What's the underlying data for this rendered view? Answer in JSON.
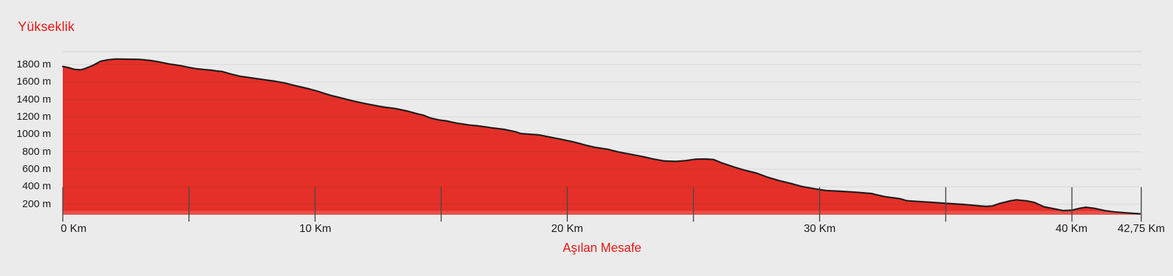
{
  "page": {
    "background": "#ebebeb"
  },
  "chart_data": {
    "type": "area",
    "title": "Yükseklik",
    "xlabel": "Aşılan Mesafe",
    "ylabel": "Yükseklik",
    "x_unit": "Km",
    "y_unit": "m",
    "xlim": [
      0,
      42.75
    ],
    "ylim": [
      0,
      1950
    ],
    "grid": true,
    "legend_position": "none",
    "fill_baseline_m": 79,
    "y_ticks": [
      {
        "value": 1800,
        "label": "1800 m"
      },
      {
        "value": 1600,
        "label": "1600 m"
      },
      {
        "value": 1400,
        "label": "1400 m"
      },
      {
        "value": 1200,
        "label": "1200 m"
      },
      {
        "value": 1000,
        "label": "1000 m"
      },
      {
        "value": 800,
        "label": "800 m"
      },
      {
        "value": 600,
        "label": "600 m"
      },
      {
        "value": 400,
        "label": "400 m"
      },
      {
        "value": 200,
        "label": "200 m"
      }
    ],
    "x_ticks": [
      {
        "value": 0,
        "label": "0 Km"
      },
      {
        "value": 5,
        "label": ""
      },
      {
        "value": 10,
        "label": "10 Km"
      },
      {
        "value": 15,
        "label": ""
      },
      {
        "value": 20,
        "label": "20 Km"
      },
      {
        "value": 25,
        "label": ""
      },
      {
        "value": 30,
        "label": "30 Km"
      },
      {
        "value": 35,
        "label": ""
      },
      {
        "value": 40,
        "label": "40 Km"
      },
      {
        "value": 42.75,
        "label": "42,75 Km"
      }
    ],
    "series": [
      {
        "name": "elevation-profile",
        "points": [
          [
            0,
            1778
          ],
          [
            0.2,
            1768
          ],
          [
            0.45,
            1746
          ],
          [
            0.7,
            1740
          ],
          [
            0.9,
            1756
          ],
          [
            1.2,
            1792
          ],
          [
            1.5,
            1838
          ],
          [
            1.8,
            1856
          ],
          [
            2.1,
            1864
          ],
          [
            2.5,
            1862
          ],
          [
            3.0,
            1860
          ],
          [
            3.2,
            1856
          ],
          [
            3.5,
            1846
          ],
          [
            3.8,
            1832
          ],
          [
            4.2,
            1808
          ],
          [
            4.7,
            1786
          ],
          [
            5.0,
            1768
          ],
          [
            5.3,
            1752
          ],
          [
            5.65,
            1742
          ],
          [
            5.9,
            1736
          ],
          [
            6.1,
            1727
          ],
          [
            6.3,
            1722
          ],
          [
            6.6,
            1697
          ],
          [
            7.0,
            1668
          ],
          [
            7.3,
            1655
          ],
          [
            7.9,
            1630
          ],
          [
            8.4,
            1610
          ],
          [
            8.8,
            1589
          ],
          [
            9.2,
            1560
          ],
          [
            9.75,
            1523
          ],
          [
            10.1,
            1495
          ],
          [
            10.45,
            1462
          ],
          [
            10.65,
            1445
          ],
          [
            11.0,
            1420
          ],
          [
            11.55,
            1380
          ],
          [
            12.0,
            1352
          ],
          [
            12.5,
            1325
          ],
          [
            12.8,
            1310
          ],
          [
            13.1,
            1300
          ],
          [
            13.35,
            1286
          ],
          [
            13.65,
            1268
          ],
          [
            14.0,
            1240
          ],
          [
            14.3,
            1220
          ],
          [
            14.55,
            1190
          ],
          [
            14.9,
            1166
          ],
          [
            15.2,
            1155
          ],
          [
            15.6,
            1130
          ],
          [
            16.1,
            1108
          ],
          [
            16.4,
            1100
          ],
          [
            16.75,
            1086
          ],
          [
            17.0,
            1075
          ],
          [
            17.5,
            1057
          ],
          [
            17.95,
            1030
          ],
          [
            18.15,
            1010
          ],
          [
            18.5,
            1002
          ],
          [
            18.85,
            996
          ],
          [
            19.3,
            970
          ],
          [
            19.75,
            944
          ],
          [
            20.2,
            917
          ],
          [
            20.5,
            895
          ],
          [
            20.7,
            878
          ],
          [
            21.1,
            851
          ],
          [
            21.6,
            830
          ],
          [
            22.0,
            800
          ],
          [
            22.5,
            772
          ],
          [
            23.0,
            745
          ],
          [
            23.4,
            719
          ],
          [
            23.85,
            695
          ],
          [
            24.3,
            690
          ],
          [
            24.7,
            700
          ],
          [
            25.1,
            716
          ],
          [
            25.5,
            718
          ],
          [
            25.8,
            712
          ],
          [
            26.1,
            675
          ],
          [
            26.6,
            627
          ],
          [
            27.05,
            588
          ],
          [
            27.5,
            556
          ],
          [
            27.95,
            508
          ],
          [
            28.4,
            470
          ],
          [
            28.9,
            435
          ],
          [
            29.3,
            403
          ],
          [
            29.8,
            377
          ],
          [
            30.25,
            357
          ],
          [
            30.7,
            350
          ],
          [
            31.2,
            342
          ],
          [
            31.6,
            334
          ],
          [
            32.05,
            323
          ],
          [
            32.3,
            305
          ],
          [
            32.55,
            288
          ],
          [
            32.8,
            278
          ],
          [
            33.05,
            268
          ],
          [
            33.2,
            262
          ],
          [
            33.45,
            240
          ],
          [
            33.9,
            231
          ],
          [
            34.35,
            223
          ],
          [
            35.0,
            210
          ],
          [
            35.7,
            197
          ],
          [
            36.2,
            185
          ],
          [
            36.6,
            174
          ],
          [
            36.85,
            180
          ],
          [
            37.1,
            205
          ],
          [
            37.55,
            238
          ],
          [
            37.8,
            250
          ],
          [
            38.2,
            238
          ],
          [
            38.5,
            222
          ],
          [
            38.9,
            170
          ],
          [
            39.35,
            144
          ],
          [
            39.65,
            126
          ],
          [
            40.0,
            131
          ],
          [
            40.3,
            152
          ],
          [
            40.55,
            165
          ],
          [
            40.9,
            152
          ],
          [
            41.3,
            126
          ],
          [
            41.65,
            113
          ],
          [
            42.2,
            100
          ],
          [
            42.5,
            94
          ],
          [
            42.7,
            90
          ]
        ]
      }
    ],
    "colors": {
      "background": "#ebebeb",
      "area_fill": "#e43028",
      "curve_line": "#1b1b1b",
      "grid_line": "#d8d8d8",
      "top_border": "#d2d2d2",
      "tick_line": "#4a4a4a",
      "axis_text": "#1a1a1a",
      "accent_text": "#e41a17"
    }
  }
}
